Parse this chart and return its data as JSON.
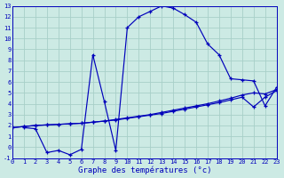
{
  "title": "Graphe des températures (°c)",
  "bg_color": "#cceae4",
  "grid_color": "#a8cfc8",
  "line_color": "#0000bb",
  "xlim": [
    0,
    23
  ],
  "ylim": [
    -1,
    13
  ],
  "xticks": [
    0,
    1,
    2,
    3,
    4,
    5,
    6,
    7,
    8,
    9,
    10,
    11,
    12,
    13,
    14,
    15,
    16,
    17,
    18,
    19,
    20,
    21,
    22,
    23
  ],
  "yticks": [
    -1,
    0,
    1,
    2,
    3,
    4,
    5,
    6,
    7,
    8,
    9,
    10,
    11,
    12,
    13
  ],
  "curve1_x": [
    1,
    2,
    3,
    4,
    5,
    6,
    7,
    8,
    9,
    10,
    11,
    12,
    13,
    14,
    15,
    16,
    17,
    18,
    19,
    20,
    21,
    22,
    23
  ],
  "curve1_y": [
    1.8,
    1.7,
    -0.5,
    -0.3,
    -0.7,
    -0.2,
    8.5,
    4.2,
    -0.3,
    11.0,
    12.0,
    12.5,
    13.0,
    12.8,
    12.2,
    11.5,
    9.5,
    8.5,
    6.3,
    6.2,
    6.1,
    3.8,
    5.5
  ],
  "curve2_x": [
    0,
    1,
    2,
    3,
    4,
    5,
    6,
    7,
    8,
    9,
    10,
    11,
    12,
    13,
    14,
    15,
    16,
    17,
    18,
    19,
    20,
    21,
    22,
    23
  ],
  "curve2_y": [
    1.8,
    1.9,
    2.0,
    2.05,
    2.1,
    2.15,
    2.2,
    2.3,
    2.4,
    2.55,
    2.7,
    2.85,
    3.0,
    3.2,
    3.4,
    3.6,
    3.8,
    4.0,
    4.25,
    4.5,
    4.8,
    5.0,
    4.9,
    5.3
  ],
  "curve3_x": [
    0,
    1,
    2,
    3,
    4,
    5,
    6,
    7,
    8,
    9,
    10,
    11,
    12,
    13,
    14,
    15,
    16,
    17,
    18,
    19,
    20,
    21,
    22,
    23
  ],
  "curve3_y": [
    1.8,
    1.9,
    2.0,
    2.05,
    2.1,
    2.15,
    2.2,
    2.3,
    2.4,
    2.5,
    2.65,
    2.8,
    2.95,
    3.1,
    3.3,
    3.5,
    3.7,
    3.9,
    4.1,
    4.35,
    4.6,
    3.7,
    4.6,
    5.2
  ]
}
